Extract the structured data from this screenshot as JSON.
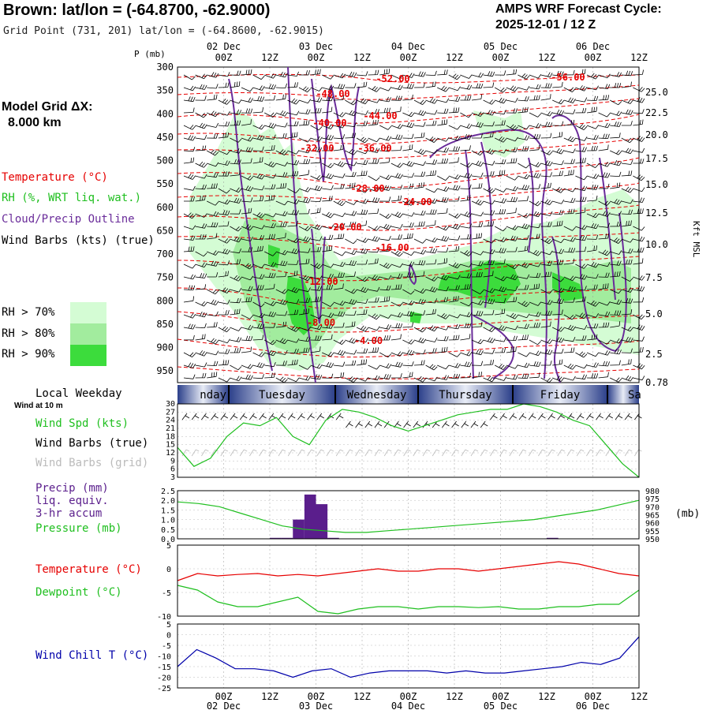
{
  "header": {
    "title": "Brown:  lat/lon = (-64.8700, -62.9000)",
    "grid_point": "Grid Point (731, 201) lat/lon = (-64.8600, -62.9015)",
    "cycle_line1": "AMPS WRF Forecast Cycle:",
    "cycle_line2": "2025-12-01 / 12  Z"
  },
  "left_panel": {
    "model_grid_label": "Model Grid ΔX:",
    "model_grid_value": "8.000 km",
    "legend_temperature": "Temperature (°C)",
    "legend_rh": "RH (%, WRT liq. wat.)",
    "legend_cloud": "Cloud/Precip Outline",
    "legend_wind": "Wind Barbs (kts) (true)",
    "rh_70": "RH > 70%",
    "rh_80": "RH > 80%",
    "rh_90": "RH > 90%",
    "rh_70_color": "#d4fcd4",
    "rh_80_color": "#a2ec9e",
    "rh_90_color": "#3cdc3c",
    "local_weekday": "Local Weekday",
    "wind_at_10m": "Wind at 10 m",
    "wind_spd": "Wind Spd (kts)",
    "wind_barbs_true": "Wind Barbs (true)",
    "wind_barbs_grid": "Wind Barbs (grid)",
    "precip_1": "Precip (mm)",
    "precip_2": "liq. equiv.",
    "precip_3": "3-hr accum",
    "pressure": "Pressure (mb)",
    "temperature": "Temperature (°C)",
    "dewpoint": "Dewpoint (°C)",
    "wind_chill": "Wind Chill T (°C)"
  },
  "axes": {
    "p_label": "P (mb)",
    "kft_label": "Kft MSL",
    "mb_label": "(mb)",
    "time_labels": [
      "00Z",
      "12Z",
      "00Z",
      "12Z",
      "00Z",
      "12Z",
      "00Z",
      "12Z",
      "00Z",
      "12Z"
    ],
    "date_labels": [
      "02 Dec",
      "03 Dec",
      "04 Dec",
      "05 Dec",
      "06 Dec"
    ],
    "pressure_levels": [
      "300",
      "350",
      "400",
      "450",
      "500",
      "550",
      "600",
      "650",
      "700",
      "750",
      "800",
      "850",
      "900",
      "950"
    ],
    "kft_levels": [
      "25.0",
      "22.5",
      "20.0",
      "17.5",
      "15.0",
      "12.5",
      "10.0",
      "7.5",
      "5.0",
      "2.5",
      "0.78"
    ],
    "weekdays": [
      "nday",
      "Tuesday",
      "Wednesday",
      "Thursday",
      "Friday",
      "Sa"
    ]
  },
  "colors": {
    "temperature": "#e60000",
    "rh": "#3cdc3c",
    "cloud": "#6a2c9a",
    "pressure": "#1fbf1f",
    "dewpoint": "#1fbf1f",
    "wind_speed": "#1fbf1f",
    "wind_chill": "#0000aa",
    "precip": "#5a1e8c"
  },
  "chart_data": [
    {
      "type": "line",
      "panel": "time-height cross section",
      "x": [
        "12-01 12Z",
        "12-02 00Z",
        "12-02 12Z",
        "12-03 00Z",
        "12-03 12Z",
        "12-04 00Z",
        "12-04 12Z",
        "12-05 00Z",
        "12-05 12Z",
        "12-06 00Z",
        "12-06 12Z"
      ],
      "ylabel": "P (mb)",
      "ylim": [
        975,
        300
      ],
      "temperature_contour_labels": [
        "-56.00",
        "-52.00",
        "-48.00",
        "-44.00",
        "-40.00",
        "-36.00",
        "-32.00",
        "-28.00",
        "-24.00",
        "-20.00",
        "-16.00",
        "-12.00",
        "-8.00",
        "-4.00"
      ]
    },
    {
      "type": "line",
      "panel": "surface wind speed",
      "ylabel": "Wind Spd (kts)",
      "yticks": [
        3,
        6,
        9,
        12,
        15,
        18,
        21,
        24,
        27,
        30
      ],
      "ylim": [
        3,
        30
      ],
      "values": [
        14,
        7,
        10,
        18,
        23,
        22,
        25,
        18,
        15,
        24,
        28,
        27,
        25,
        22,
        20,
        22,
        24,
        26,
        27,
        28,
        28,
        30,
        29,
        27,
        24,
        22,
        15,
        8,
        3
      ]
    },
    {
      "type": "bar",
      "panel": "3-hr precip",
      "ylabel": "Precip (mm)",
      "yticks": [
        "0.0",
        "0.5",
        "1.0",
        "1.5",
        "2.0",
        "2.5"
      ],
      "ylim": [
        0,
        2.5
      ],
      "bars": [
        {
          "hour": 24,
          "value": 0.05
        },
        {
          "hour": 27,
          "value": 0.05
        },
        {
          "hour": 30,
          "value": 1.0
        },
        {
          "hour": 33,
          "value": 2.3
        },
        {
          "hour": 36,
          "value": 1.8
        },
        {
          "hour": 39,
          "value": 0.05
        },
        {
          "hour": 96,
          "value": 0.05
        }
      ],
      "pressure_ylabel": "Pressure (mb)",
      "pressure_yticks": [
        "950",
        "955",
        "960",
        "965",
        "970",
        "975",
        "980"
      ],
      "pressure_ylim": [
        950,
        980
      ],
      "pressure": [
        973,
        972,
        970,
        966,
        962,
        958,
        956,
        955,
        954,
        954,
        955,
        956,
        957,
        958,
        959,
        960,
        961,
        962,
        964,
        966,
        968,
        971,
        974
      ]
    },
    {
      "type": "line",
      "panel": "temperature and dewpoint",
      "yticks": [
        "5",
        "0",
        "-5",
        "-10"
      ],
      "ylim": [
        -10,
        5
      ],
      "temperature": [
        -2.5,
        -1,
        -1.5,
        -1.2,
        -1,
        -1.5,
        -1.2,
        -1.5,
        -1,
        -0.5,
        0,
        -0.5,
        -0.5,
        0,
        0,
        -0.5,
        0,
        0.5,
        1,
        1.5,
        1,
        0,
        -1,
        -1.5
      ],
      "dewpoint": [
        -3.5,
        -4.5,
        -7,
        -8,
        -8,
        -7,
        -6,
        -9,
        -9.5,
        -8.5,
        -8,
        -8,
        -8.5,
        -8,
        -8,
        -8.2,
        -8,
        -8.5,
        -8.5,
        -8,
        -8,
        -7.5,
        -7.5,
        -4.5
      ]
    },
    {
      "type": "line",
      "panel": "wind chill",
      "ylabel": "Wind Chill T (°C)",
      "yticks": [
        "5",
        "0",
        "-5",
        "-10",
        "-15",
        "-20",
        "-25"
      ],
      "ylim": [
        -25,
        5
      ],
      "values": [
        -15,
        -7,
        -11,
        -16,
        -16,
        -17,
        -20,
        -17,
        -16,
        -20,
        -18,
        -17,
        -17,
        -17,
        -18,
        -17,
        -18,
        -18,
        -17,
        -16,
        -15,
        -13,
        -14,
        -11,
        -1
      ]
    }
  ]
}
